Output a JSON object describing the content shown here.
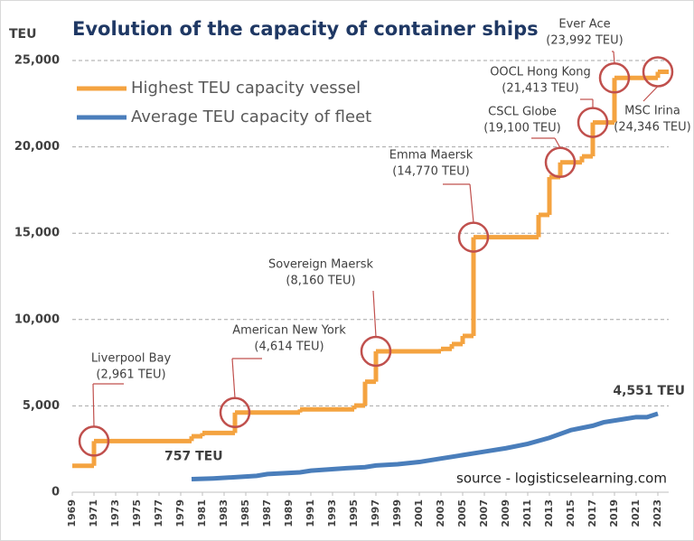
{
  "chart_data": {
    "type": "step-line",
    "title": "Evolution of the capacity of container ships",
    "y_label": "TEU",
    "source": "source - logisticselearning.com",
    "xlim": [
      1969,
      2024
    ],
    "ylim": [
      0,
      25000
    ],
    "xticks": [
      1969,
      1971,
      1973,
      1975,
      1977,
      1979,
      1981,
      1983,
      1985,
      1987,
      1989,
      1991,
      1993,
      1995,
      1997,
      1999,
      2001,
      2003,
      2005,
      2007,
      2009,
      2011,
      2013,
      2015,
      2017,
      2019,
      2021,
      2023
    ],
    "yticks": [
      0,
      {
        "value": 5000,
        "label": "5,000"
      },
      {
        "value": 10000,
        "label": "10,000"
      },
      {
        "value": 15000,
        "label": "15,000"
      },
      {
        "value": 20000,
        "label": "20,000"
      },
      {
        "value": 25000,
        "label": "25,000"
      }
    ],
    "grid": true,
    "legend": "upper left",
    "series": [
      {
        "name": "Highest TEU capacity vessel",
        "color": "#f4a340",
        "x": [
          1969,
          1971,
          1980,
          1981,
          1984,
          1990,
          1995,
          1996,
          1997,
          2003,
          2004,
          2005,
          2006,
          2012,
          2013,
          2014,
          2016,
          2017,
          2019,
          2023
        ],
        "values": [
          1530,
          2961,
          3240,
          3430,
          4614,
          4800,
          5020,
          6400,
          8160,
          8300,
          8580,
          9050,
          14770,
          16060,
          18250,
          19100,
          19450,
          21413,
          23992,
          24346
        ]
      },
      {
        "name": "Average TEU capacity of fleet",
        "color": "#4a7ebb",
        "x": [
          1980,
          1982,
          1984,
          1986,
          1987,
          1990,
          1991,
          1994,
          1996,
          1997,
          1999,
          2001,
          2003,
          2005,
          2007,
          2009,
          2011,
          2013,
          2015,
          2017,
          2018,
          2020,
          2021,
          2022,
          2023
        ],
        "values": [
          757,
          800,
          870,
          950,
          1050,
          1150,
          1250,
          1380,
          1450,
          1550,
          1620,
          1750,
          1950,
          2150,
          2350,
          2550,
          2800,
          3150,
          3600,
          3850,
          4050,
          4250,
          4350,
          4350,
          4551
        ],
        "value_labels": [
          "757 TEU",
          null,
          null,
          null,
          null,
          null,
          null,
          null,
          null,
          null,
          null,
          null,
          null,
          null,
          null,
          null,
          null,
          null,
          null,
          null,
          null,
          null,
          null,
          null,
          "4,551 TEU"
        ]
      }
    ],
    "annotations": [
      {
        "name": "Liverpool Bay",
        "label": "(2,961 TEU)",
        "x": 1971,
        "y": 2961
      },
      {
        "name": "American New York",
        "label": "(4,614 TEU)",
        "x": 1984,
        "y": 4614
      },
      {
        "name": "Sovereign Maersk",
        "label": "(8,160 TEU)",
        "x": 1997,
        "y": 8160
      },
      {
        "name": "Emma Maersk",
        "label": "(14,770 TEU)",
        "x": 2006,
        "y": 14770
      },
      {
        "name": "CSCL Globe",
        "label": "(19,100 TEU)",
        "x": 2014,
        "y": 19100
      },
      {
        "name": "OOCL Hong Kong",
        "label": "(21,413 TEU)",
        "x": 2017,
        "y": 21413
      },
      {
        "name": "Ever Ace",
        "label": "(23,992 TEU)",
        "x": 2019,
        "y": 23992
      },
      {
        "name": "MSC Irina",
        "label": "(24,346 TEU)",
        "x": 2023,
        "y": 24346
      }
    ]
  }
}
